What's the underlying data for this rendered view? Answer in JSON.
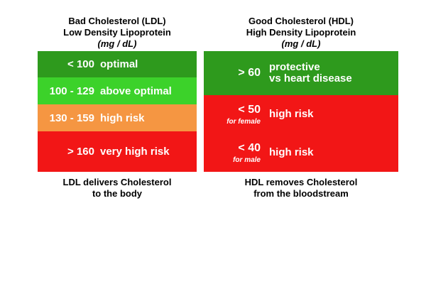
{
  "ldl": {
    "title": "Bad Cholesterol (LDL)",
    "subtitle": "Low Density Lipoprotein",
    "unit": "(mg / dL)",
    "rows": [
      {
        "value": "< 100",
        "label": "optimal",
        "color": "#2e9a1d"
      },
      {
        "value": "100 - 129",
        "label": "above optimal",
        "color": "#3cd22a"
      },
      {
        "value": "130 - 159",
        "label": "high risk",
        "color": "#f59642"
      },
      {
        "value": "> 160",
        "label": "very high risk",
        "color": "#f21616"
      }
    ],
    "footer": [
      "LDL delivers Cholesterol",
      "to the body"
    ]
  },
  "hdl": {
    "title": "Good Cholesterol (HDL)",
    "subtitle": "High Density Lipoprotein",
    "unit": "(mg / dL)",
    "rows": [
      {
        "value": "> 60",
        "note": "",
        "label": [
          "protective",
          "vs heart disease"
        ],
        "color": "#2e9a1d"
      },
      {
        "value": "< 50",
        "note": "for female",
        "label": [
          "high risk"
        ],
        "color": "#f21616"
      },
      {
        "value": "< 40",
        "note": "for male",
        "label": [
          "high risk"
        ],
        "color": "#f21616"
      }
    ],
    "footer": [
      "HDL removes Cholesterol",
      "from the bloodstream"
    ]
  }
}
